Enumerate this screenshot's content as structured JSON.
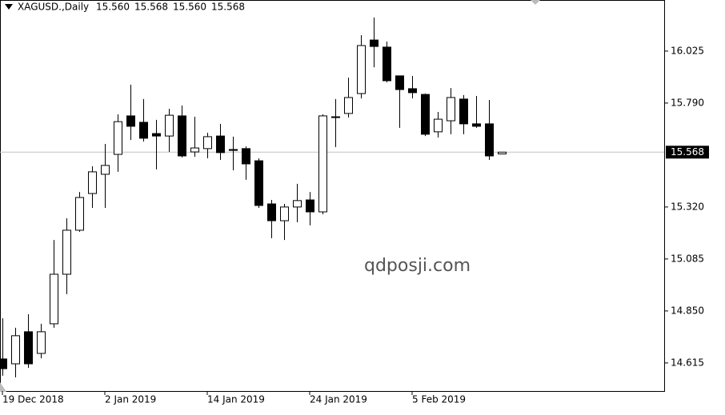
{
  "chart_data": {
    "type": "candlestick",
    "title": "XAGUSD.,Daily",
    "header_values": [
      "15.560",
      "15.568",
      "15.560",
      "15.568"
    ],
    "annotation": "qdposji.com",
    "categories": [
      "19 Dec 2018",
      null,
      null,
      null,
      null,
      null,
      null,
      null,
      "2 Jan 2019",
      null,
      null,
      null,
      null,
      null,
      null,
      null,
      "14 Jan 2019",
      null,
      null,
      null,
      null,
      null,
      null,
      null,
      "24 Jan 2019",
      null,
      null,
      null,
      null,
      null,
      null,
      null,
      "5 Feb 2019",
      null,
      null,
      null,
      null,
      null,
      null,
      null
    ],
    "open": [
      14.633,
      14.611,
      14.756,
      14.658,
      14.792,
      15.016,
      15.215,
      15.381,
      15.468,
      15.558,
      15.732,
      15.703,
      15.652,
      15.641,
      15.732,
      15.569,
      15.584,
      15.641,
      15.58,
      15.584,
      15.529,
      15.334,
      15.258,
      15.32,
      15.352,
      15.298,
      15.728,
      15.743,
      15.833,
      16.075,
      16.043,
      15.913,
      15.855,
      15.829,
      15.66,
      15.71,
      15.808,
      15.696,
      15.696,
      15.56
    ],
    "high": [
      14.817,
      14.774,
      14.835,
      14.792,
      15.171,
      15.269,
      15.388,
      15.504,
      15.605,
      15.739,
      15.873,
      15.808,
      15.714,
      15.764,
      15.779,
      15.728,
      15.656,
      15.696,
      15.638,
      15.594,
      15.54,
      15.352,
      15.334,
      15.425,
      15.388,
      15.739,
      15.808,
      15.905,
      16.097,
      16.177,
      16.068,
      15.913,
      15.913,
      15.833,
      15.75,
      15.858,
      15.826,
      15.822,
      15.804,
      15.568
    ],
    "low": [
      14.557,
      14.55,
      14.593,
      14.636,
      14.774,
      14.926,
      15.208,
      15.316,
      15.316,
      15.479,
      15.623,
      15.616,
      15.49,
      15.569,
      15.544,
      15.547,
      15.54,
      15.533,
      15.486,
      15.443,
      15.316,
      15.179,
      15.171,
      15.251,
      15.237,
      15.287,
      15.591,
      15.725,
      15.811,
      15.952,
      15.884,
      15.678,
      15.811,
      15.641,
      15.634,
      15.649,
      15.649,
      15.678,
      15.533,
      15.56
    ],
    "close": [
      14.589,
      14.738,
      14.611,
      14.756,
      15.016,
      15.215,
      15.363,
      15.479,
      15.508,
      15.706,
      15.685,
      15.631,
      15.641,
      15.735,
      15.551,
      15.587,
      15.638,
      15.566,
      15.576,
      15.515,
      15.327,
      15.258,
      15.32,
      15.349,
      15.298,
      15.732,
      15.725,
      15.815,
      16.05,
      16.046,
      15.891,
      15.851,
      15.837,
      15.649,
      15.717,
      15.815,
      15.696,
      15.685,
      15.551,
      15.568
    ],
    "ylim": [
      14.488,
      16.256
    ],
    "yticks": [
      {
        "value": 14.615,
        "label": "14.615"
      },
      {
        "value": 14.85,
        "label": "14.850"
      },
      {
        "value": 15.085,
        "label": "15.085"
      },
      {
        "value": 15.32,
        "label": "15.320"
      },
      {
        "value": 15.79,
        "label": "15.790"
      },
      {
        "value": 16.025,
        "label": "16.025"
      }
    ],
    "current_price": {
      "value": 15.568,
      "label": "15.568"
    },
    "up_color": "#ffffff",
    "down_color": "#000000"
  }
}
